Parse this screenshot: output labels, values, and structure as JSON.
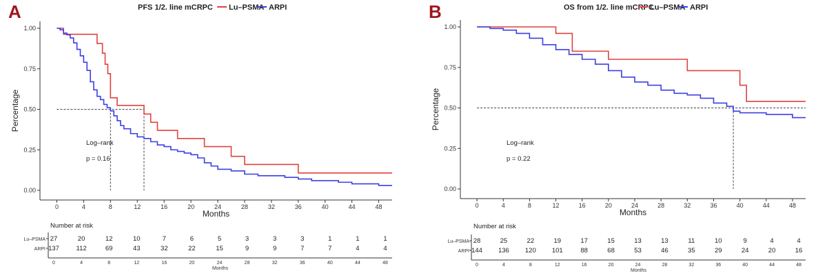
{
  "chart_data": [
    {
      "type": "line",
      "panel_label": "A",
      "title": "PFS 1/2. line mCRPC",
      "legend": [
        "Lu–PSMA",
        "ARPI"
      ],
      "xlabel": "Months",
      "ylabel": "Percentage",
      "xlim": [
        -2,
        50
      ],
      "ylim": [
        0,
        1
      ],
      "x_ticks": [
        0,
        4,
        8,
        12,
        16,
        20,
        24,
        28,
        32,
        36,
        40,
        44,
        48
      ],
      "y_ticks": [
        "0.00",
        "0.25",
        "0.50",
        "0.75",
        "1.00"
      ],
      "median_lines": [
        8,
        13
      ],
      "annotation_lines": [
        "Log–rank",
        "p = 0.16"
      ],
      "series": [
        {
          "name": "Lu–PSMA",
          "color": "#e0413e",
          "x": [
            0,
            1,
            2,
            3,
            4,
            5,
            6,
            6.8,
            7.2,
            7.6,
            8,
            9,
            10.5,
            13,
            14,
            15,
            18,
            20,
            22,
            24,
            26,
            28,
            32,
            36,
            40,
            48,
            50
          ],
          "y": [
            1,
            0.963,
            0.963,
            0.963,
            0.963,
            0.963,
            0.906,
            0.846,
            0.778,
            0.72,
            0.571,
            0.524,
            0.524,
            0.471,
            0.42,
            0.37,
            0.32,
            0.32,
            0.27,
            0.27,
            0.21,
            0.16,
            0.16,
            0.107,
            0.107,
            0.107,
            0.107
          ]
        },
        {
          "name": "ARPI",
          "color": "#3b3fe0",
          "x": [
            0,
            0.5,
            1,
            1.5,
            2,
            2.5,
            3,
            3.5,
            4,
            4.5,
            5,
            5.5,
            6,
            6.5,
            7,
            7.5,
            8,
            8.5,
            9,
            9.5,
            10,
            11,
            12,
            13,
            14,
            15,
            16,
            17,
            18,
            19,
            20,
            21,
            22,
            23,
            24,
            26,
            28,
            30,
            32,
            34,
            36,
            38,
            40,
            42,
            44,
            46,
            48,
            50
          ],
          "y": [
            1,
            0.99,
            0.97,
            0.96,
            0.94,
            0.91,
            0.87,
            0.83,
            0.79,
            0.74,
            0.67,
            0.62,
            0.58,
            0.56,
            0.53,
            0.51,
            0.49,
            0.46,
            0.43,
            0.4,
            0.38,
            0.35,
            0.33,
            0.32,
            0.3,
            0.28,
            0.27,
            0.25,
            0.24,
            0.23,
            0.22,
            0.2,
            0.17,
            0.15,
            0.13,
            0.12,
            0.1,
            0.09,
            0.09,
            0.08,
            0.07,
            0.06,
            0.06,
            0.05,
            0.04,
            0.04,
            0.03,
            0.03
          ]
        }
      ],
      "risk_table": {
        "title": "Number at risk",
        "x": [
          0,
          4,
          8,
          12,
          16,
          20,
          24,
          28,
          32,
          36,
          40,
          44,
          48
        ],
        "xlabel": "Months",
        "rows": [
          {
            "label": "Lu–PSMA",
            "color": "#e0413e",
            "values": [
              27,
              20,
              12,
              10,
              7,
              6,
              5,
              3,
              3,
              3,
              1,
              1,
              1
            ]
          },
          {
            "label": "ARPI",
            "color": "#3b3fe0",
            "values": [
              137,
              112,
              69,
              43,
              32,
              22,
              15,
              9,
              9,
              7,
              7,
              4,
              4
            ]
          }
        ]
      }
    },
    {
      "type": "line",
      "panel_label": "B",
      "title": "OS from 1/2. line mCRPC",
      "legend": [
        "Lu–PSMA",
        "ARPI"
      ],
      "xlabel": "Months",
      "ylabel": "Percentage",
      "xlim": [
        -2,
        50
      ],
      "ylim": [
        0,
        1
      ],
      "x_ticks": [
        0,
        4,
        8,
        12,
        16,
        20,
        24,
        28,
        32,
        36,
        40,
        44,
        48
      ],
      "y_ticks": [
        "0.00",
        "0.25",
        "0.50",
        "0.75",
        "1.00"
      ],
      "median_lines": [
        39
      ],
      "annotation_lines": [
        "Log–rank",
        "p = 0.22"
      ],
      "series": [
        {
          "name": "Lu–PSMA",
          "color": "#e0413e",
          "x": [
            0,
            11,
            12,
            14.5,
            20,
            32,
            40,
            41,
            50
          ],
          "y": [
            1,
            1,
            0.96,
            0.85,
            0.8,
            0.73,
            0.64,
            0.54,
            0.54
          ],
          "step": true
        },
        {
          "name": "ARPI",
          "color": "#3b3fe0",
          "x": [
            0,
            2,
            4,
            6,
            8,
            10,
            12,
            14,
            16,
            18,
            20,
            22,
            24,
            26,
            28,
            30,
            32,
            34,
            36,
            38,
            39,
            40,
            42,
            44,
            46,
            48,
            50
          ],
          "y": [
            1,
            0.99,
            0.98,
            0.96,
            0.93,
            0.89,
            0.86,
            0.83,
            0.8,
            0.77,
            0.73,
            0.69,
            0.66,
            0.64,
            0.61,
            0.59,
            0.58,
            0.56,
            0.53,
            0.51,
            0.48,
            0.47,
            0.47,
            0.46,
            0.46,
            0.44,
            0.44
          ]
        }
      ],
      "risk_table": {
        "title": "Number at risk",
        "x": [
          0,
          4,
          8,
          12,
          16,
          20,
          24,
          28,
          32,
          36,
          40,
          44,
          48
        ],
        "xlabel": "Months",
        "rows": [
          {
            "label": "Lu–PSMA",
            "color": "#e0413e",
            "values": [
              28,
              25,
              22,
              19,
              17,
              15,
              13,
              13,
              11,
              10,
              9,
              4,
              4
            ]
          },
          {
            "label": "ARPI",
            "color": "#3b3fe0",
            "values": [
              144,
              136,
              120,
              101,
              88,
              68,
              53,
              46,
              35,
              29,
              24,
              20,
              16
            ]
          }
        ]
      }
    }
  ]
}
